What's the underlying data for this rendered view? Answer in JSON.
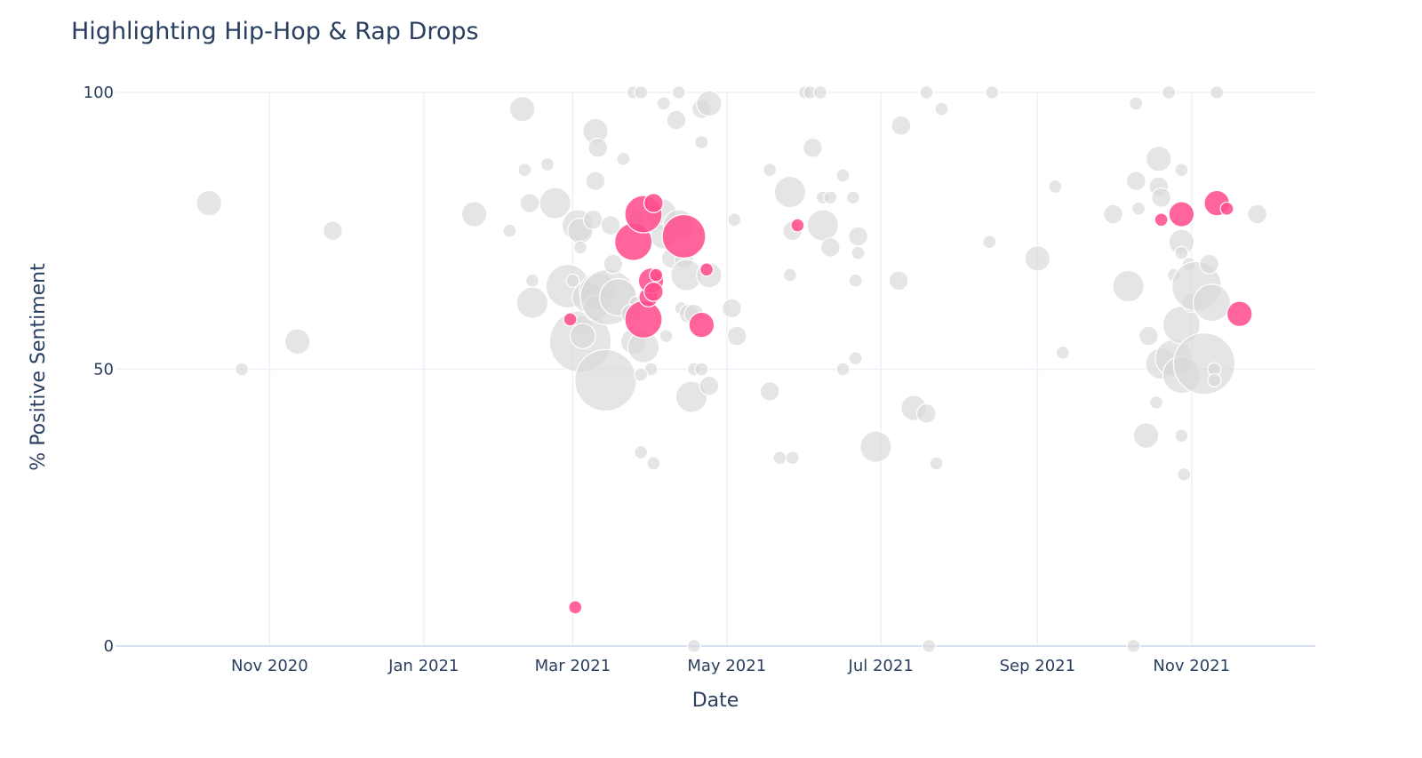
{
  "chart_data": {
    "type": "scatter",
    "title": "Highlighting Hip-Hop & Rap Drops",
    "xlabel": "Date",
    "ylabel": "% Positive Sentiment",
    "xlim": [
      "2020-09-01",
      "2021-12-20"
    ],
    "ylim": [
      0,
      100
    ],
    "grid": true,
    "legend": "none",
    "x_ticks": [
      "Nov 2020",
      "Jan 2021",
      "Mar 2021",
      "May 2021",
      "Jul 2021",
      "Sep 2021",
      "Nov 2021"
    ],
    "x_tick_dates": [
      "2020-11-01",
      "2021-01-01",
      "2021-03-01",
      "2021-05-01",
      "2021-07-01",
      "2021-09-01",
      "2021-11-01"
    ],
    "y_ticks": [
      0,
      50,
      100
    ],
    "colors": {
      "highlight": "#ff4f8e",
      "other": "#d9d9d9"
    },
    "series": [
      {
        "key": "other",
        "color": "#d9d9d9",
        "points": [
          {
            "x": "2020-10-08",
            "y": 80,
            "size": 3
          },
          {
            "x": "2020-10-21",
            "y": 50,
            "size": 1
          },
          {
            "x": "2020-11-12",
            "y": 55,
            "size": 3
          },
          {
            "x": "2020-11-26",
            "y": 75,
            "size": 2
          },
          {
            "x": "2021-01-21",
            "y": 78,
            "size": 3
          },
          {
            "x": "2021-02-04",
            "y": 75,
            "size": 1
          },
          {
            "x": "2021-02-09",
            "y": 97,
            "size": 3
          },
          {
            "x": "2021-02-10",
            "y": 86,
            "size": 1
          },
          {
            "x": "2021-02-12",
            "y": 80,
            "size": 2
          },
          {
            "x": "2021-02-13",
            "y": 66,
            "size": 1
          },
          {
            "x": "2021-02-13",
            "y": 62,
            "size": 4
          },
          {
            "x": "2021-02-19",
            "y": 87,
            "size": 1
          },
          {
            "x": "2021-02-22",
            "y": 80,
            "size": 4
          },
          {
            "x": "2021-02-27",
            "y": 65,
            "size": 6
          },
          {
            "x": "2021-03-01",
            "y": 66,
            "size": 1
          },
          {
            "x": "2021-03-03",
            "y": 76,
            "size": 4
          },
          {
            "x": "2021-03-04",
            "y": 75,
            "size": 3
          },
          {
            "x": "2021-03-04",
            "y": 72,
            "size": 1
          },
          {
            "x": "2021-03-05",
            "y": 58,
            "size": 2
          },
          {
            "x": "2021-03-04",
            "y": 55,
            "size": 9
          },
          {
            "x": "2021-03-05",
            "y": 56,
            "size": 3
          },
          {
            "x": "2021-03-07",
            "y": 63,
            "size": 4
          },
          {
            "x": "2021-03-09",
            "y": 77,
            "size": 2
          },
          {
            "x": "2021-03-10",
            "y": 93,
            "size": 3
          },
          {
            "x": "2021-03-11",
            "y": 90,
            "size": 2
          },
          {
            "x": "2021-03-10",
            "y": 84,
            "size": 2
          },
          {
            "x": "2021-03-11",
            "y": 64,
            "size": 5
          },
          {
            "x": "2021-03-10",
            "y": 61,
            "size": 3
          },
          {
            "x": "2021-03-15",
            "y": 63,
            "size": 8
          },
          {
            "x": "2021-03-14",
            "y": 48,
            "size": 9
          },
          {
            "x": "2021-03-16",
            "y": 76,
            "size": 2
          },
          {
            "x": "2021-03-17",
            "y": 69,
            "size": 2
          },
          {
            "x": "2021-03-19",
            "y": 63,
            "size": 5
          },
          {
            "x": "2021-03-21",
            "y": 88,
            "size": 1
          },
          {
            "x": "2021-03-25",
            "y": 100,
            "size": 1
          },
          {
            "x": "2021-03-28",
            "y": 100,
            "size": 1
          },
          {
            "x": "2021-03-26",
            "y": 77,
            "size": 2
          },
          {
            "x": "2021-03-26",
            "y": 62,
            "size": 1
          },
          {
            "x": "2021-03-24",
            "y": 60,
            "size": 2
          },
          {
            "x": "2021-03-25",
            "y": 55,
            "size": 3
          },
          {
            "x": "2021-03-29",
            "y": 54,
            "size": 4
          },
          {
            "x": "2021-04-01",
            "y": 50,
            "size": 1
          },
          {
            "x": "2021-03-28",
            "y": 49,
            "size": 1
          },
          {
            "x": "2021-03-28",
            "y": 35,
            "size": 1
          },
          {
            "x": "2021-04-02",
            "y": 33,
            "size": 1
          },
          {
            "x": "2021-04-06",
            "y": 98,
            "size": 1
          },
          {
            "x": "2021-04-05",
            "y": 78,
            "size": 4
          },
          {
            "x": "2021-04-06",
            "y": 74,
            "size": 3
          },
          {
            "x": "2021-04-07",
            "y": 56,
            "size": 1
          },
          {
            "x": "2021-04-09",
            "y": 70,
            "size": 2
          },
          {
            "x": "2021-04-11",
            "y": 95,
            "size": 2
          },
          {
            "x": "2021-04-12",
            "y": 100,
            "size": 1
          },
          {
            "x": "2021-04-12",
            "y": 76,
            "size": 4
          },
          {
            "x": "2021-04-14",
            "y": 70,
            "size": 2
          },
          {
            "x": "2021-04-15",
            "y": 67,
            "size": 4
          },
          {
            "x": "2021-04-13",
            "y": 61,
            "size": 1
          },
          {
            "x": "2021-04-16",
            "y": 60,
            "size": 2
          },
          {
            "x": "2021-04-18",
            "y": 60,
            "size": 2
          },
          {
            "x": "2021-04-17",
            "y": 45,
            "size": 4
          },
          {
            "x": "2021-04-18",
            "y": 50,
            "size": 1
          },
          {
            "x": "2021-04-21",
            "y": 97,
            "size": 2
          },
          {
            "x": "2021-04-21",
            "y": 91,
            "size": 1
          },
          {
            "x": "2021-04-21",
            "y": 50,
            "size": 1
          },
          {
            "x": "2021-04-24",
            "y": 98,
            "size": 3
          },
          {
            "x": "2021-04-24",
            "y": 67,
            "size": 3
          },
          {
            "x": "2021-04-24",
            "y": 47,
            "size": 2
          },
          {
            "x": "2021-04-18",
            "y": 0,
            "size": 1
          },
          {
            "x": "2021-05-04",
            "y": 77,
            "size": 1
          },
          {
            "x": "2021-05-03",
            "y": 61,
            "size": 2
          },
          {
            "x": "2021-05-05",
            "y": 56,
            "size": 2
          },
          {
            "x": "2021-05-18",
            "y": 86,
            "size": 1
          },
          {
            "x": "2021-05-18",
            "y": 46,
            "size": 2
          },
          {
            "x": "2021-05-22",
            "y": 34,
            "size": 1
          },
          {
            "x": "2021-05-26",
            "y": 82,
            "size": 4
          },
          {
            "x": "2021-05-27",
            "y": 75,
            "size": 2
          },
          {
            "x": "2021-05-26",
            "y": 67,
            "size": 1
          },
          {
            "x": "2021-05-27",
            "y": 34,
            "size": 1
          },
          {
            "x": "2021-06-01",
            "y": 100,
            "size": 1
          },
          {
            "x": "2021-06-03",
            "y": 100,
            "size": 1
          },
          {
            "x": "2021-06-04",
            "y": 90,
            "size": 2
          },
          {
            "x": "2021-06-07",
            "y": 100,
            "size": 1
          },
          {
            "x": "2021-06-08",
            "y": 81,
            "size": 1
          },
          {
            "x": "2021-06-08",
            "y": 76,
            "size": 4
          },
          {
            "x": "2021-06-11",
            "y": 81,
            "size": 1
          },
          {
            "x": "2021-06-11",
            "y": 72,
            "size": 2
          },
          {
            "x": "2021-06-16",
            "y": 85,
            "size": 1
          },
          {
            "x": "2021-06-20",
            "y": 81,
            "size": 1
          },
          {
            "x": "2021-06-22",
            "y": 74,
            "size": 2
          },
          {
            "x": "2021-06-22",
            "y": 71,
            "size": 1
          },
          {
            "x": "2021-06-21",
            "y": 66,
            "size": 1
          },
          {
            "x": "2021-06-21",
            "y": 52,
            "size": 1
          },
          {
            "x": "2021-06-16",
            "y": 50,
            "size": 1
          },
          {
            "x": "2021-06-29",
            "y": 36,
            "size": 4
          },
          {
            "x": "2021-07-09",
            "y": 94,
            "size": 2
          },
          {
            "x": "2021-07-08",
            "y": 66,
            "size": 2
          },
          {
            "x": "2021-07-14",
            "y": 43,
            "size": 3
          },
          {
            "x": "2021-07-19",
            "y": 42,
            "size": 2
          },
          {
            "x": "2021-07-19",
            "y": 100,
            "size": 1
          },
          {
            "x": "2021-07-25",
            "y": 97,
            "size": 1
          },
          {
            "x": "2021-07-23",
            "y": 33,
            "size": 1
          },
          {
            "x": "2021-07-20",
            "y": 0,
            "size": 1
          },
          {
            "x": "2021-08-14",
            "y": 100,
            "size": 1
          },
          {
            "x": "2021-08-13",
            "y": 73,
            "size": 1
          },
          {
            "x": "2021-09-01",
            "y": 70,
            "size": 3
          },
          {
            "x": "2021-09-08",
            "y": 83,
            "size": 1
          },
          {
            "x": "2021-09-11",
            "y": 53,
            "size": 1
          },
          {
            "x": "2021-10-01",
            "y": 78,
            "size": 2
          },
          {
            "x": "2021-10-07",
            "y": 65,
            "size": 4
          },
          {
            "x": "2021-10-10",
            "y": 98,
            "size": 1
          },
          {
            "x": "2021-10-10",
            "y": 84,
            "size": 2
          },
          {
            "x": "2021-10-11",
            "y": 79,
            "size": 1
          },
          {
            "x": "2021-10-09",
            "y": 0,
            "size": 1
          },
          {
            "x": "2021-10-15",
            "y": 56,
            "size": 2
          },
          {
            "x": "2021-10-19",
            "y": 88,
            "size": 3
          },
          {
            "x": "2021-10-19",
            "y": 83,
            "size": 2
          },
          {
            "x": "2021-10-20",
            "y": 81,
            "size": 2
          },
          {
            "x": "2021-10-14",
            "y": 38,
            "size": 3
          },
          {
            "x": "2021-10-18",
            "y": 44,
            "size": 1
          },
          {
            "x": "2021-10-20",
            "y": 51,
            "size": 4
          },
          {
            "x": "2021-10-23",
            "y": 100,
            "size": 1
          },
          {
            "x": "2021-10-25",
            "y": 67,
            "size": 1
          },
          {
            "x": "2021-10-25",
            "y": 52,
            "size": 5
          },
          {
            "x": "2021-10-28",
            "y": 86,
            "size": 1
          },
          {
            "x": "2021-10-28",
            "y": 73,
            "size": 3
          },
          {
            "x": "2021-10-28",
            "y": 71,
            "size": 1
          },
          {
            "x": "2021-10-28",
            "y": 58,
            "size": 5
          },
          {
            "x": "2021-10-28",
            "y": 49,
            "size": 5
          },
          {
            "x": "2021-10-28",
            "y": 38,
            "size": 1
          },
          {
            "x": "2021-10-29",
            "y": 31,
            "size": 1
          },
          {
            "x": "2021-10-31",
            "y": 69,
            "size": 1
          },
          {
            "x": "2021-11-01",
            "y": 62,
            "size": 2
          },
          {
            "x": "2021-11-03",
            "y": 65,
            "size": 7
          },
          {
            "x": "2021-11-06",
            "y": 51,
            "size": 9
          },
          {
            "x": "2021-11-08",
            "y": 69,
            "size": 2
          },
          {
            "x": "2021-11-09",
            "y": 62,
            "size": 5
          },
          {
            "x": "2021-11-11",
            "y": 100,
            "size": 1
          },
          {
            "x": "2021-11-10",
            "y": 50,
            "size": 1
          },
          {
            "x": "2021-11-10",
            "y": 48,
            "size": 1
          },
          {
            "x": "2021-11-27",
            "y": 78,
            "size": 2
          }
        ]
      },
      {
        "key": "highlight",
        "color": "#ff4f8e",
        "points": [
          {
            "x": "2021-02-28",
            "y": 59,
            "size": 1
          },
          {
            "x": "2021-03-02",
            "y": 7,
            "size": 1
          },
          {
            "x": "2021-03-25",
            "y": 73,
            "size": 5
          },
          {
            "x": "2021-03-29",
            "y": 78,
            "size": 5
          },
          {
            "x": "2021-03-29",
            "y": 59,
            "size": 5
          },
          {
            "x": "2021-03-31",
            "y": 63,
            "size": 2
          },
          {
            "x": "2021-04-01",
            "y": 66,
            "size": 3
          },
          {
            "x": "2021-04-02",
            "y": 80,
            "size": 2
          },
          {
            "x": "2021-04-02",
            "y": 64,
            "size": 2
          },
          {
            "x": "2021-04-03",
            "y": 67,
            "size": 1
          },
          {
            "x": "2021-04-14",
            "y": 74,
            "size": 6
          },
          {
            "x": "2021-04-21",
            "y": 58,
            "size": 3
          },
          {
            "x": "2021-04-23",
            "y": 68,
            "size": 1
          },
          {
            "x": "2021-05-29",
            "y": 76,
            "size": 1
          },
          {
            "x": "2021-10-20",
            "y": 77,
            "size": 1
          },
          {
            "x": "2021-10-28",
            "y": 78,
            "size": 3
          },
          {
            "x": "2021-11-11",
            "y": 80,
            "size": 3
          },
          {
            "x": "2021-11-15",
            "y": 79,
            "size": 1
          },
          {
            "x": "2021-11-20",
            "y": 60,
            "size": 3
          }
        ]
      }
    ]
  }
}
